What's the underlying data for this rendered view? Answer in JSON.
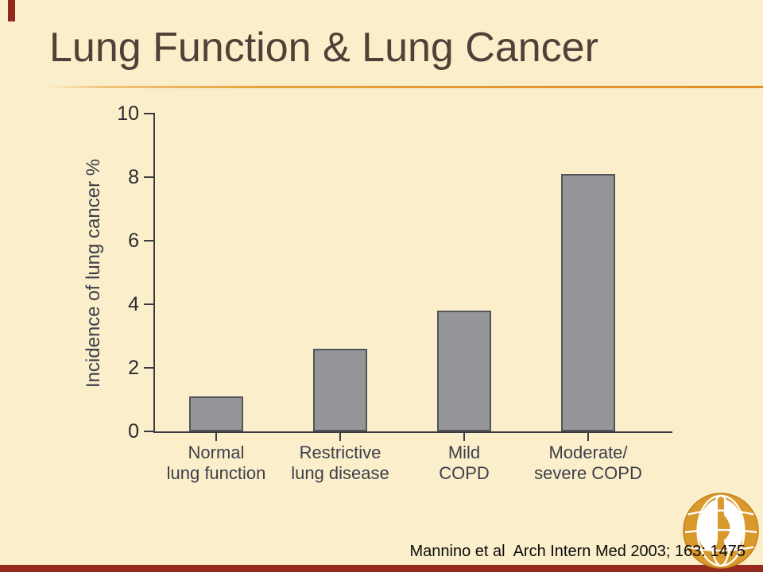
{
  "slide": {
    "title": "Lung Function & Lung Cancer",
    "citation": "Mannino et al  Arch Intern Med 2003; 163: 1475",
    "colors": {
      "background": "#FBEECA",
      "title_text": "#4E4238",
      "separator": "#E8A13B",
      "accent_red": "#96291E",
      "bar_fill": "#95969A",
      "bar_border": "#54555A",
      "axis": "#3B3B40",
      "tick_text": "#2A2A2F",
      "chart_text": "#3D3F4A",
      "citation_text": "#0B0B0B",
      "logo_gold": "#D9992B"
    }
  },
  "chart_data": {
    "type": "bar",
    "title": "",
    "categories": [
      "Normal lung function",
      "Restrictive lung disease",
      "Mild COPD",
      "Moderate/severe COPD"
    ],
    "category_lines": [
      [
        "Normal",
        "lung function"
      ],
      [
        "Restrictive",
        "lung disease"
      ],
      [
        "Mild",
        "COPD"
      ],
      [
        "Moderate/",
        "severe COPD"
      ]
    ],
    "values": [
      1.1,
      2.6,
      3.8,
      8.1
    ],
    "xlabel": "",
    "ylabel": "Incidence of lung cancer %",
    "ylim": [
      0,
      10
    ],
    "yticks": [
      0,
      2,
      4,
      6,
      8,
      10
    ],
    "grid": false,
    "legend": false,
    "bar_color": "#95969A"
  },
  "logo": {
    "name": "gold-globe-lungs-logo"
  }
}
